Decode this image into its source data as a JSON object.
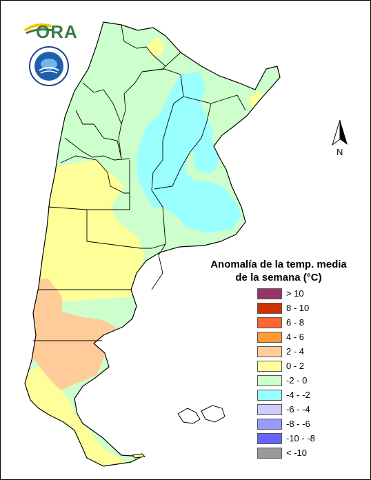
{
  "header": {
    "ora_logo_text": "ORA",
    "smn_logo_alt": "SMN"
  },
  "map": {
    "country": "Argentina",
    "north_label": "N"
  },
  "legend": {
    "title_line1": "Anomalía de la temp. media",
    "title_line2": "de la semana (°C)",
    "items": [
      {
        "label": "> 10",
        "color": "#993366"
      },
      {
        "label": "8 - 10",
        "color": "#cc3300"
      },
      {
        "label": "6 - 8",
        "color": "#ff6633"
      },
      {
        "label": "4 - 6",
        "color": "#ff9933"
      },
      {
        "label": "2 - 4",
        "color": "#ffcc99"
      },
      {
        "label": "0 - 2",
        "color": "#ffff99"
      },
      {
        "label": "-2 - 0",
        "color": "#ccffcc"
      },
      {
        "label": "-4 - -2",
        "color": "#99ffff"
      },
      {
        "label": "-6 - -4",
        "color": "#ccccff"
      },
      {
        "label": "-8 - -6",
        "color": "#9999ff"
      },
      {
        "label": "-10 - -8",
        "color": "#6666ff"
      },
      {
        "label": "< -10",
        "color": "#999999"
      }
    ]
  }
}
